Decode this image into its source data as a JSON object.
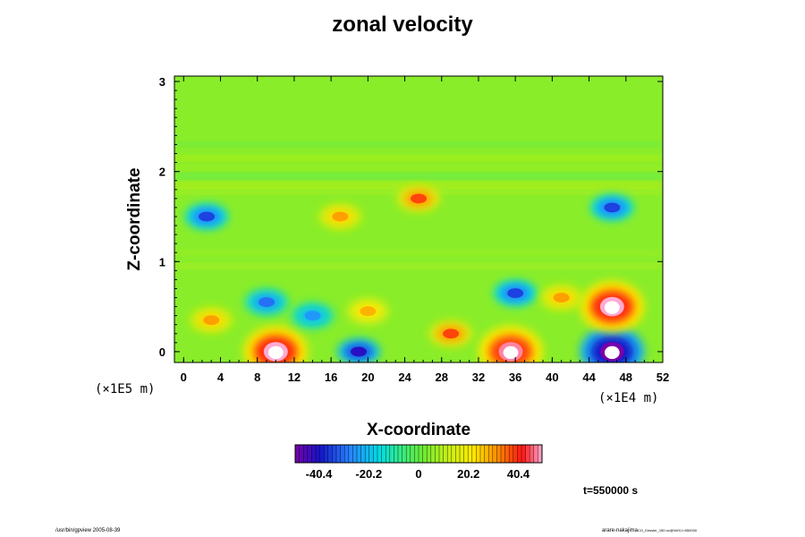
{
  "chart_data": {
    "type": "heatmap",
    "title": "zonal velocity",
    "xlabel": "X-coordinate",
    "ylabel": "Z-coordinate",
    "x_unit": "(×1E4 m)",
    "z_unit": "(×1E5 m)",
    "xlim": [
      -1,
      52
    ],
    "ylim": [
      -0.12,
      3.06
    ],
    "xticks": [
      "0",
      "4",
      "8",
      "12",
      "16",
      "20",
      "24",
      "28",
      "32",
      "36",
      "40",
      "44",
      "48",
      "52"
    ],
    "yticks": [
      "0",
      "1",
      "2",
      "3"
    ],
    "colorbar": {
      "ticks": [
        "-40.4",
        "-20.2",
        "0",
        "20.2",
        "40.4"
      ],
      "range": [
        -50,
        50
      ]
    },
    "time_label": "t=550000 s",
    "footer_left": "/usr/bin/gpview 2005-08-39",
    "footer_right": "arare-nakajima",
    "footer_right_small": "CO_Kessler_150.nc@VelX,t=550000",
    "features": [
      {
        "x": 10,
        "z": 0.0,
        "value": 50
      },
      {
        "x": 35.5,
        "z": 0.0,
        "value": 48
      },
      {
        "x": 46.5,
        "z": 0.0,
        "value": -50
      },
      {
        "x": 19,
        "z": 0.0,
        "value": -42
      },
      {
        "x": 46.5,
        "z": 0.5,
        "value": 50
      },
      {
        "x": 36,
        "z": 0.65,
        "value": -35
      },
      {
        "x": 20,
        "z": 0.45,
        "value": 28
      },
      {
        "x": 9,
        "z": 0.55,
        "value": -30
      },
      {
        "x": 14,
        "z": 0.4,
        "value": -25
      },
      {
        "x": 3,
        "z": 0.35,
        "value": 30
      },
      {
        "x": 2.5,
        "z": 1.5,
        "value": -35
      },
      {
        "x": 46.5,
        "z": 1.6,
        "value": -35
      },
      {
        "x": 25.5,
        "z": 1.7,
        "value": 38
      },
      {
        "x": 17,
        "z": 1.5,
        "value": 30
      },
      {
        "x": 29,
        "z": 0.2,
        "value": 38
      },
      {
        "x": 41,
        "z": 0.6,
        "value": 30
      }
    ]
  }
}
